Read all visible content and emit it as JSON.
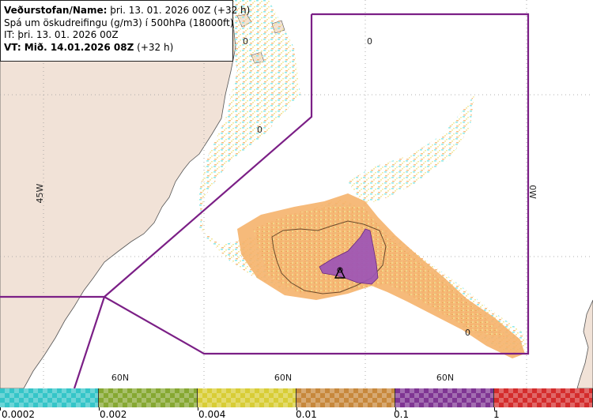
{
  "header": {
    "line1_bold": "Veðurstofan/Name:",
    "line1_rest": " þri. 13. 01. 2026 00Z (+32 h)",
    "line2": "Spá um öskudreifingu (g/m3) í 500hPa (18000ft)",
    "line3": "IT: þri. 13. 01. 2026 00Z",
    "line4_bold": "VT: Mið. 14.01.2026 08Z",
    "line4_rest": " (+32 h)"
  },
  "map": {
    "longitude_labels": [
      "45W",
      "0W"
    ],
    "latitude_labels": [
      "60N",
      "60N",
      "60N"
    ],
    "contour_labels": [
      "0",
      "0",
      "0",
      "0"
    ],
    "colors": {
      "land": "#f1e2d7",
      "sea": "#ffffff",
      "grid": "#999999",
      "region_outline": "#7b1f86",
      "ash_light_yellow": "#f1e48f",
      "ash_orange": "#f5b26b",
      "ash_dark_orange": "#e8a04e",
      "ash_purple": "#9c54b5",
      "ash_cyan": "#7fe6e6"
    }
  },
  "legend": {
    "ranges": [
      "0.0002",
      "0.002",
      "0.004",
      "0.01",
      "0.1",
      "1"
    ],
    "colors": [
      "#35c5c8",
      "#86a832",
      "#d8cd36",
      "#c7883c",
      "#7f3593",
      "#d42c2c"
    ]
  }
}
